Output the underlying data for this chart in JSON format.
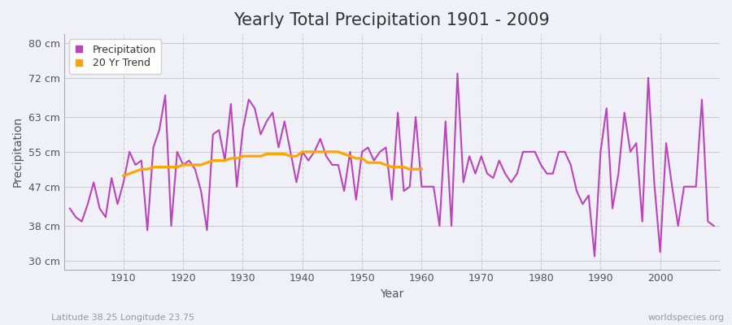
{
  "title": "Yearly Total Precipitation 1901 - 2009",
  "xlabel": "Year",
  "ylabel": "Precipitation",
  "subtitle": "Latitude 38.25 Longitude 23.75",
  "watermark": "worldspecies.org",
  "years": [
    1901,
    1902,
    1903,
    1904,
    1905,
    1906,
    1907,
    1908,
    1909,
    1910,
    1911,
    1912,
    1913,
    1914,
    1915,
    1916,
    1917,
    1918,
    1919,
    1920,
    1921,
    1922,
    1923,
    1924,
    1925,
    1926,
    1927,
    1928,
    1929,
    1930,
    1931,
    1932,
    1933,
    1934,
    1935,
    1936,
    1937,
    1938,
    1939,
    1940,
    1941,
    1942,
    1943,
    1944,
    1945,
    1946,
    1947,
    1948,
    1949,
    1950,
    1951,
    1952,
    1953,
    1954,
    1955,
    1956,
    1957,
    1958,
    1959,
    1960,
    1961,
    1962,
    1963,
    1964,
    1965,
    1966,
    1967,
    1968,
    1969,
    1970,
    1971,
    1972,
    1973,
    1974,
    1975,
    1976,
    1977,
    1978,
    1979,
    1980,
    1981,
    1982,
    1983,
    1984,
    1985,
    1986,
    1987,
    1988,
    1989,
    1990,
    1991,
    1992,
    1993,
    1994,
    1995,
    1996,
    1997,
    1998,
    1999,
    2000,
    2001,
    2002,
    2003,
    2004,
    2005,
    2006,
    2007,
    2008,
    2009
  ],
  "precipitation": [
    42,
    40,
    39,
    43,
    48,
    42,
    40,
    49,
    43,
    48,
    55,
    52,
    53,
    37,
    56,
    60,
    68,
    38,
    55,
    52,
    53,
    51,
    46,
    37,
    59,
    60,
    53,
    66,
    47,
    60,
    67,
    65,
    59,
    62,
    64,
    56,
    62,
    55,
    48,
    55,
    53,
    55,
    58,
    54,
    52,
    52,
    46,
    55,
    44,
    55,
    56,
    53,
    55,
    56,
    44,
    64,
    46,
    47,
    63,
    47,
    47,
    47,
    38,
    62,
    38,
    73,
    48,
    54,
    50,
    54,
    50,
    49,
    53,
    50,
    48,
    50,
    55,
    55,
    55,
    52,
    50,
    50,
    55,
    55,
    52,
    46,
    43,
    45,
    31,
    55,
    65,
    42,
    50,
    64,
    55,
    57,
    39,
    72,
    48,
    32,
    57,
    47,
    38,
    47,
    47,
    47,
    67,
    39,
    38
  ],
  "trend_years": [
    1910,
    1911,
    1912,
    1913,
    1914,
    1915,
    1916,
    1917,
    1918,
    1919,
    1920,
    1921,
    1922,
    1923,
    1924,
    1925,
    1926,
    1927,
    1928,
    1929,
    1930,
    1931,
    1932,
    1933,
    1934,
    1935,
    1936,
    1937,
    1938,
    1939,
    1940,
    1941,
    1942,
    1943,
    1944,
    1945,
    1946,
    1947,
    1948,
    1949,
    1950,
    1951,
    1952,
    1953,
    1954,
    1955,
    1956,
    1957,
    1958,
    1959,
    1960
  ],
  "trend_values": [
    49.5,
    50,
    50.5,
    51,
    51,
    51.5,
    51.5,
    51.5,
    51.5,
    51.5,
    52,
    52,
    52,
    52,
    52.5,
    53,
    53,
    53,
    53.5,
    53.5,
    54,
    54,
    54,
    54,
    54.5,
    54.5,
    54.5,
    54.5,
    54,
    54,
    55,
    55,
    55,
    55,
    55,
    55,
    55,
    54.5,
    54,
    53.5,
    53.5,
    52.5,
    52.5,
    52.5,
    52,
    51.5,
    51.5,
    51.5,
    51,
    51,
    51
  ],
  "precip_color": "#bb44bb",
  "trend_color": "#ffa500",
  "background_color": "#f0f0f8",
  "plot_bg_color": "#f0f0f8",
  "grid_color_h": "#cccccc",
  "grid_color_v": "#cccccc",
  "ylim": [
    28,
    82
  ],
  "yticks": [
    30,
    38,
    47,
    55,
    63,
    72,
    80
  ],
  "ytick_labels": [
    "30 cm",
    "38 cm",
    "47 cm",
    "55 cm",
    "63 cm",
    "72 cm",
    "80 cm"
  ],
  "xticks": [
    1910,
    1920,
    1930,
    1940,
    1950,
    1960,
    1970,
    1980,
    1990,
    2000
  ],
  "title_fontsize": 15,
  "axis_label_fontsize": 10,
  "tick_fontsize": 9,
  "legend_fontsize": 9,
  "line_width": 1.5
}
